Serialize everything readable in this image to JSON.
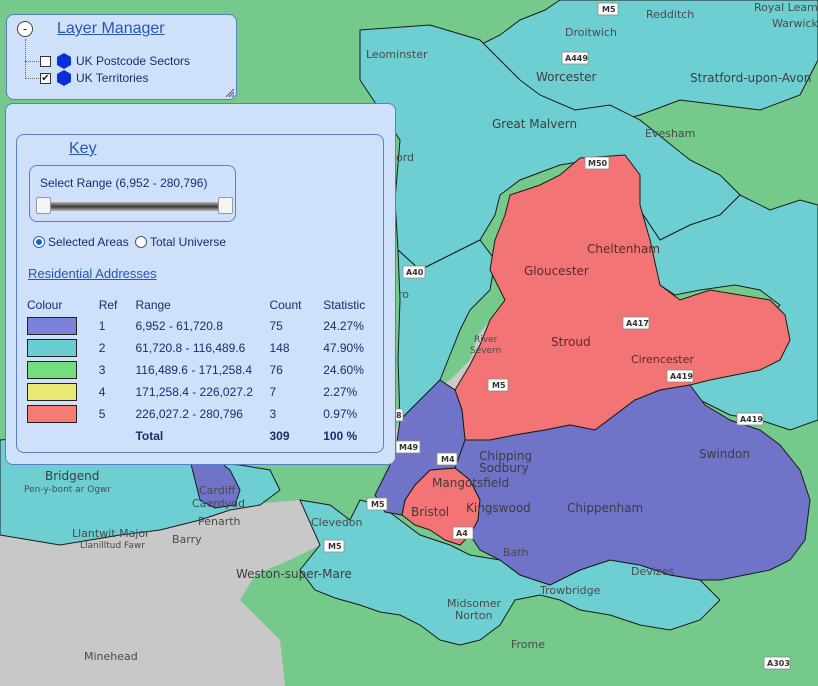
{
  "layer_manager": {
    "title": "Layer Manager",
    "toggle": "-",
    "layers": [
      {
        "label": "UK Postcode Sectors",
        "checked": false,
        "icon": "hexagon-icon",
        "color": "#0a2fd8"
      },
      {
        "label": "UK Territories",
        "checked": true,
        "icon": "hexagon-icon",
        "color": "#0a2fd8"
      }
    ]
  },
  "key": {
    "title": "Key",
    "range_label": "Select Range (6,952 - 280,796)",
    "range": {
      "min": 6952,
      "max": 280796
    },
    "radio": [
      {
        "label": "Selected Areas",
        "selected": true
      },
      {
        "label": "Total Universe",
        "selected": false
      }
    ],
    "measure": "Residential Addresses",
    "columns": {
      "colour": "Colour",
      "ref": "Ref",
      "range": "Range",
      "count": "Count",
      "statistic": "Statistic"
    },
    "rows": [
      {
        "color": "#7b82d8",
        "ref": "1",
        "range": "6,952 - 61,720.8",
        "count": "75",
        "statistic": "24.27%"
      },
      {
        "color": "#6ccdd0",
        "ref": "2",
        "range": "61,720.8 - 116,489.6",
        "count": "148",
        "statistic": "47.90%"
      },
      {
        "color": "#74dd7e",
        "ref": "3",
        "range": "116,489.6 - 171,258.4",
        "count": "76",
        "statistic": "24.60%"
      },
      {
        "color": "#e9e873",
        "ref": "4",
        "range": "171,258.4 - 226,027.2",
        "count": "7",
        "statistic": "2.27%"
      },
      {
        "color": "#f67b73",
        "ref": "5",
        "range": "226,027.2 - 280,796",
        "count": "3",
        "statistic": "0.97%"
      }
    ],
    "total": {
      "label": "Total",
      "count": "309",
      "statistic": "100 %"
    }
  },
  "map": {
    "colors": {
      "green": "#74c98b",
      "cyan": "#6ecfd3",
      "blue": "#6f74c9",
      "red": "#f37474",
      "sea": "#c8c8c8"
    },
    "places": {
      "redditch": "Redditch",
      "droitwich": "Droitwich",
      "royal_leamington": "Royal Leamin",
      "warwick": "Warwick",
      "leominster": "Leominster",
      "worcester": "Worcester",
      "stratford": "Stratford-upon-Avon",
      "great_malvern": "Great Malvern",
      "evesham": "Evesham",
      "ford": "ord",
      "cheltenham": "Cheltenham",
      "gloucester": "Gloucester",
      "stroud": "Stroud",
      "cirencester": "Cirencester",
      "river_severn_1": "River",
      "river_severn_2": "Severn",
      "ro": "ro",
      "swindon": "Swindon",
      "chipping_sodbury_1": "Chipping",
      "chipping_sodbury_2": "Sodbury",
      "mangotsfield": "Mangotsfield",
      "bristol": "Bristol",
      "kingswood": "Kingswood",
      "chippenham": "Chippenham",
      "bath": "Bath",
      "devizes": "Devizes",
      "trowbridge": "Trowbridge",
      "bridgend": "Bridgend",
      "bridgend_welsh": "Pen-y-bont ar Ogwr",
      "cardiff": "Cardiff",
      "cardiff_welsh": "Caerdydd",
      "penarth": "Penarth",
      "llantwit_1": "Llantwit Major",
      "llantwit_2": "Llanilltud Fawr",
      "barry": "Barry",
      "clevedon": "Clevedon",
      "weston": "Weston-super-Mare",
      "midsomer_1": "Midsomer",
      "midsomer_2": "Norton",
      "frome": "Frome",
      "minehead": "Minehead"
    },
    "roads": {
      "m5_top": "M5",
      "a449": "A449",
      "m50": "M50",
      "a40": "A40",
      "a417": "A417",
      "a419": "A419",
      "m5_mid": "M5",
      "a4_left": "8",
      "m49": "M49",
      "m4": "M4",
      "a4": "A4",
      "m5_low": "M5",
      "m5_bottom": "M5",
      "a419_right": "A419",
      "a303": "A303"
    }
  }
}
